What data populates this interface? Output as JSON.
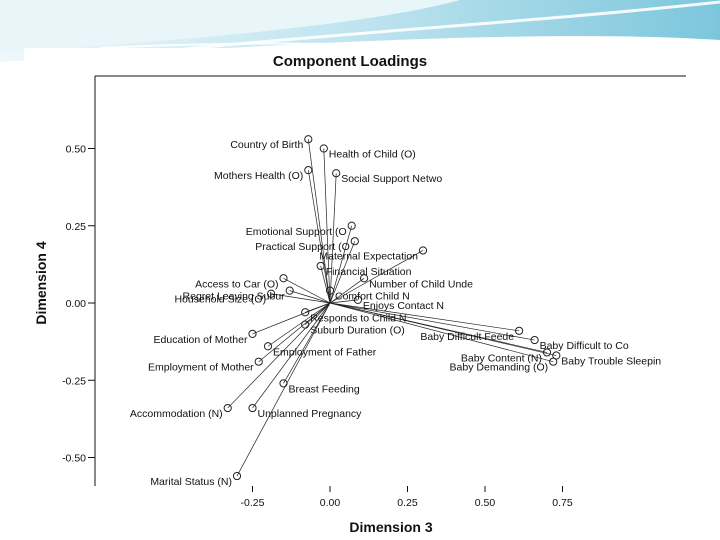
{
  "colors": {
    "banner_light": "#dff2f7",
    "banner_mid": "#9fd6e6",
    "banner_dark": "#5fb4cc",
    "ink": "#111111"
  },
  "chart_data": {
    "type": "scatter",
    "title": "Component Loadings",
    "xlabel": "Dimension 3",
    "ylabel": "Dimension 4",
    "xlim": [
      -0.38,
      0.88
    ],
    "ylim": [
      -0.6,
      0.55
    ],
    "xticks": [
      -0.25,
      0.0,
      0.25,
      0.5,
      0.75
    ],
    "xtick_labels": [
      "-0.25",
      "0.00",
      "0.25",
      "0.50",
      "0.75"
    ],
    "yticks": [
      -0.5,
      -0.25,
      0.0,
      0.25,
      0.5
    ],
    "ytick_labels": [
      "-0.50",
      "-0.25",
      "0.00",
      "0.25",
      "0.50"
    ],
    "grid": false,
    "vectors_from_origin": true,
    "points": [
      {
        "label": "Country of Birth",
        "x": -0.07,
        "y": 0.53,
        "anchor": "end"
      },
      {
        "label": "Health of Child (O)",
        "x": -0.02,
        "y": 0.5,
        "anchor": "start"
      },
      {
        "label": "Mothers Health (O)",
        "x": -0.07,
        "y": 0.43,
        "anchor": "end"
      },
      {
        "label": "Social Support Netwo",
        "x": 0.02,
        "y": 0.42,
        "anchor": "start"
      },
      {
        "label": "Emotional Support (O",
        "x": 0.07,
        "y": 0.25,
        "anchor": "end"
      },
      {
        "label": "Practical Support (O",
        "x": 0.08,
        "y": 0.2,
        "anchor": "end"
      },
      {
        "label": "Maternal Expectation",
        "x": 0.3,
        "y": 0.17,
        "anchor": "end"
      },
      {
        "label": "Financial Situation",
        "x": -0.03,
        "y": 0.12,
        "anchor": "start"
      },
      {
        "label": "Number of Child Unde",
        "x": 0.11,
        "y": 0.08,
        "anchor": "start"
      },
      {
        "label": "Access to Car (O)",
        "x": -0.15,
        "y": 0.08,
        "anchor": "end"
      },
      {
        "label": "Household Size (O)",
        "x": -0.19,
        "y": 0.03,
        "anchor": "end"
      },
      {
        "label": "Comfort Child N",
        "x": 0.0,
        "y": 0.04,
        "anchor": "start"
      },
      {
        "label": "Enjoys Contact N",
        "x": 0.09,
        "y": 0.01,
        "anchor": "start"
      },
      {
        "label": "Regret Leaving Subur",
        "x": -0.13,
        "y": 0.04,
        "anchor": "end"
      },
      {
        "label": "Responds to Child N",
        "x": -0.08,
        "y": -0.03,
        "anchor": "start"
      },
      {
        "label": "Suburb Duration (O)",
        "x": -0.08,
        "y": -0.07,
        "anchor": "start"
      },
      {
        "label": "Education of Mother",
        "x": -0.25,
        "y": -0.1,
        "anchor": "end"
      },
      {
        "label": "Employment of Father",
        "x": -0.2,
        "y": -0.14,
        "anchor": "start"
      },
      {
        "label": "Employment of Mother",
        "x": -0.23,
        "y": -0.19,
        "anchor": "end"
      },
      {
        "label": "Breast Feeding",
        "x": -0.15,
        "y": -0.26,
        "anchor": "start"
      },
      {
        "label": "Accommodation (N)",
        "x": -0.33,
        "y": -0.34,
        "anchor": "end"
      },
      {
        "label": "Unplanned Pregnancy",
        "x": -0.25,
        "y": -0.34,
        "anchor": "start"
      },
      {
        "label": "Marital Status (N)",
        "x": -0.3,
        "y": -0.56,
        "anchor": "end"
      },
      {
        "label": "Baby Difficult Feede",
        "x": 0.61,
        "y": -0.09,
        "anchor": "end"
      },
      {
        "label": "Baby Difficult to Co",
        "x": 0.66,
        "y": -0.12,
        "anchor": "start"
      },
      {
        "label": "Baby Content (N)",
        "x": 0.7,
        "y": -0.16,
        "anchor": "end"
      },
      {
        "label": "Baby Trouble Sleepin",
        "x": 0.73,
        "y": -0.17,
        "anchor": "start"
      },
      {
        "label": "Baby Demanding (O)",
        "x": 0.72,
        "y": -0.19,
        "anchor": "end"
      }
    ]
  }
}
